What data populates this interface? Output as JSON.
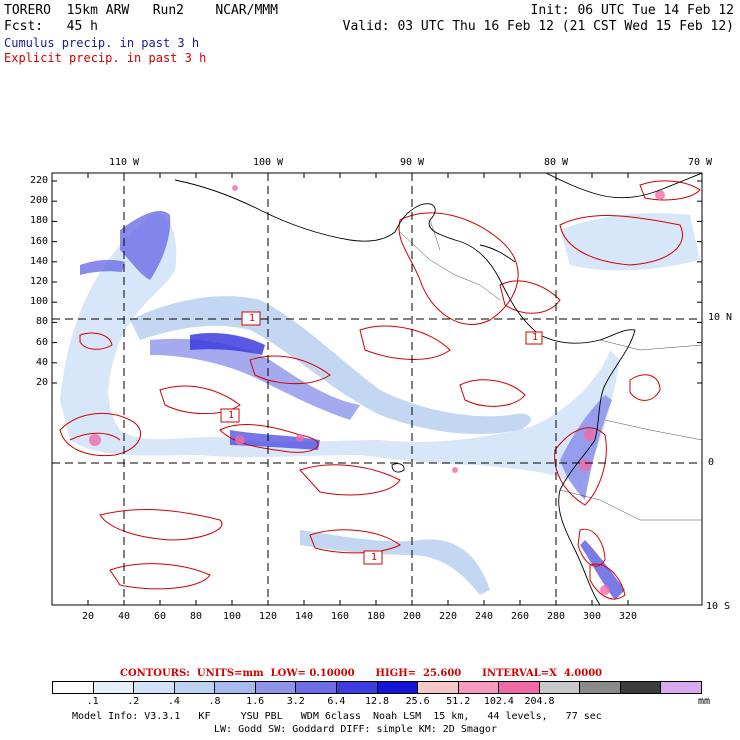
{
  "header": {
    "line1_left": "TORERO  15km ARW   Run2    NCAR/MMM",
    "line1_right": "Init: 06 UTC Tue 14 Feb 12",
    "line2_left": "Fcst:   45 h",
    "line2_right": "Valid: 03 UTC Thu 16 Feb 12 (21 CST Wed 15 Feb 12)",
    "legend_cumulus": "Cumulus precip. in past 3 h",
    "legend_explicit": "Explicit precip. in past 3 h"
  },
  "axes": {
    "y_ticks": [
      "220",
      "200",
      "180",
      "160",
      "140",
      "120",
      "100",
      "80",
      "60",
      "40",
      "20"
    ],
    "x_ticks": [
      "20",
      "40",
      "60",
      "80",
      "100",
      "120",
      "140",
      "160",
      "180",
      "200",
      "220",
      "240",
      "260",
      "280",
      "300",
      "320"
    ],
    "lon_labels": [
      "110 W",
      "100 W",
      "90 W",
      "80 W",
      "70 W"
    ],
    "lat_labels": [
      "10 N",
      "0",
      "10 S"
    ]
  },
  "markers": [
    "1",
    "1",
    "1",
    "1"
  ],
  "contour_info": "CONTOURS:  UNITS=mm  LOW= 0.10000      HIGH=  25.600      INTERVAL=X  4.0000",
  "colorbar": {
    "colors": [
      "#ffffff",
      "#e6f0fb",
      "#d3e3f7",
      "#bdd3f2",
      "#a7b9ee",
      "#8f95ea",
      "#6d6de6",
      "#3c3ce0",
      "#1515d8",
      "#f6c7c7",
      "#f79ac0",
      "#f06aa8",
      "#c8c8c8",
      "#8a8a8a",
      "#3c3c3c",
      "#d8a8f0"
    ],
    "labels": [
      ".1",
      ".2",
      ".4",
      ".8",
      "1.6",
      "3.2",
      "6.4",
      "12.8",
      "25.6",
      "51.2",
      "102.4",
      "204.8"
    ],
    "units": "mm"
  },
  "footer": {
    "line1": "Model Info: V3.3.1   KF     YSU PBL   WDM 6class  Noah LSM  15 km,   44 levels,   77 sec",
    "line2": "LW: Godd SW: Goddard DIFF: simple KM: 2D Smagor"
  }
}
